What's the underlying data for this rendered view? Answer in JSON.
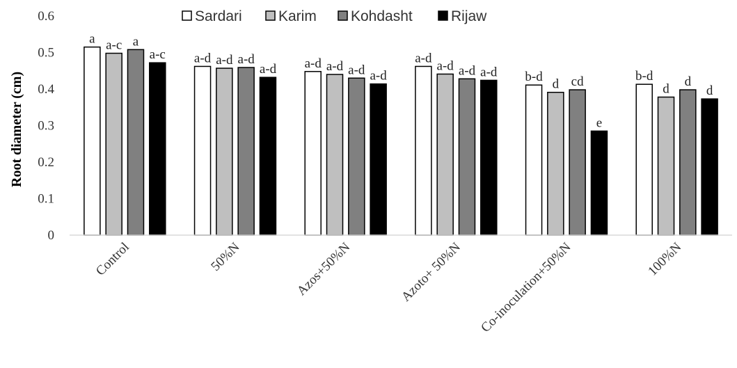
{
  "chart_data": {
    "type": "bar",
    "title": "",
    "xlabel": "",
    "ylabel": "Root diameter (cm)",
    "ylim": [
      0,
      0.6
    ],
    "yticks": [
      "0",
      "0.1",
      "0.2",
      "0.3",
      "0.4",
      "0.5",
      "0.6"
    ],
    "grid": false,
    "legend": "top",
    "categories": [
      "Control",
      "50%N",
      "Azos+50%N",
      "Azoto+ 50%N",
      "Co-inoculation+50%N",
      "100%N"
    ],
    "series": [
      {
        "name": "Sardari",
        "color": "#ffffff",
        "values": [
          0.515,
          0.462,
          0.448,
          0.462,
          0.411,
          0.413
        ],
        "labels": [
          "a",
          "a-d",
          "a-d",
          "a-d",
          "b-d",
          "b-d"
        ]
      },
      {
        "name": "Karim",
        "color": "#bfbfbf",
        "values": [
          0.498,
          0.457,
          0.44,
          0.441,
          0.391,
          0.378
        ],
        "labels": [
          "a-c",
          "a-d",
          "a-d",
          "a-d",
          "d",
          "d"
        ]
      },
      {
        "name": "Kohdasht",
        "color": "#808080",
        "values": [
          0.508,
          0.459,
          0.43,
          0.428,
          0.398,
          0.398
        ],
        "labels": [
          "a",
          "a-d",
          "a-d",
          "a-d",
          "cd",
          "d"
        ]
      },
      {
        "name": "Rijaw",
        "color": "#000000",
        "values": [
          0.472,
          0.432,
          0.414,
          0.424,
          0.285,
          0.373
        ],
        "labels": [
          "a-c",
          "a-d",
          "a-d",
          "a-d",
          "e",
          "d"
        ]
      }
    ]
  }
}
